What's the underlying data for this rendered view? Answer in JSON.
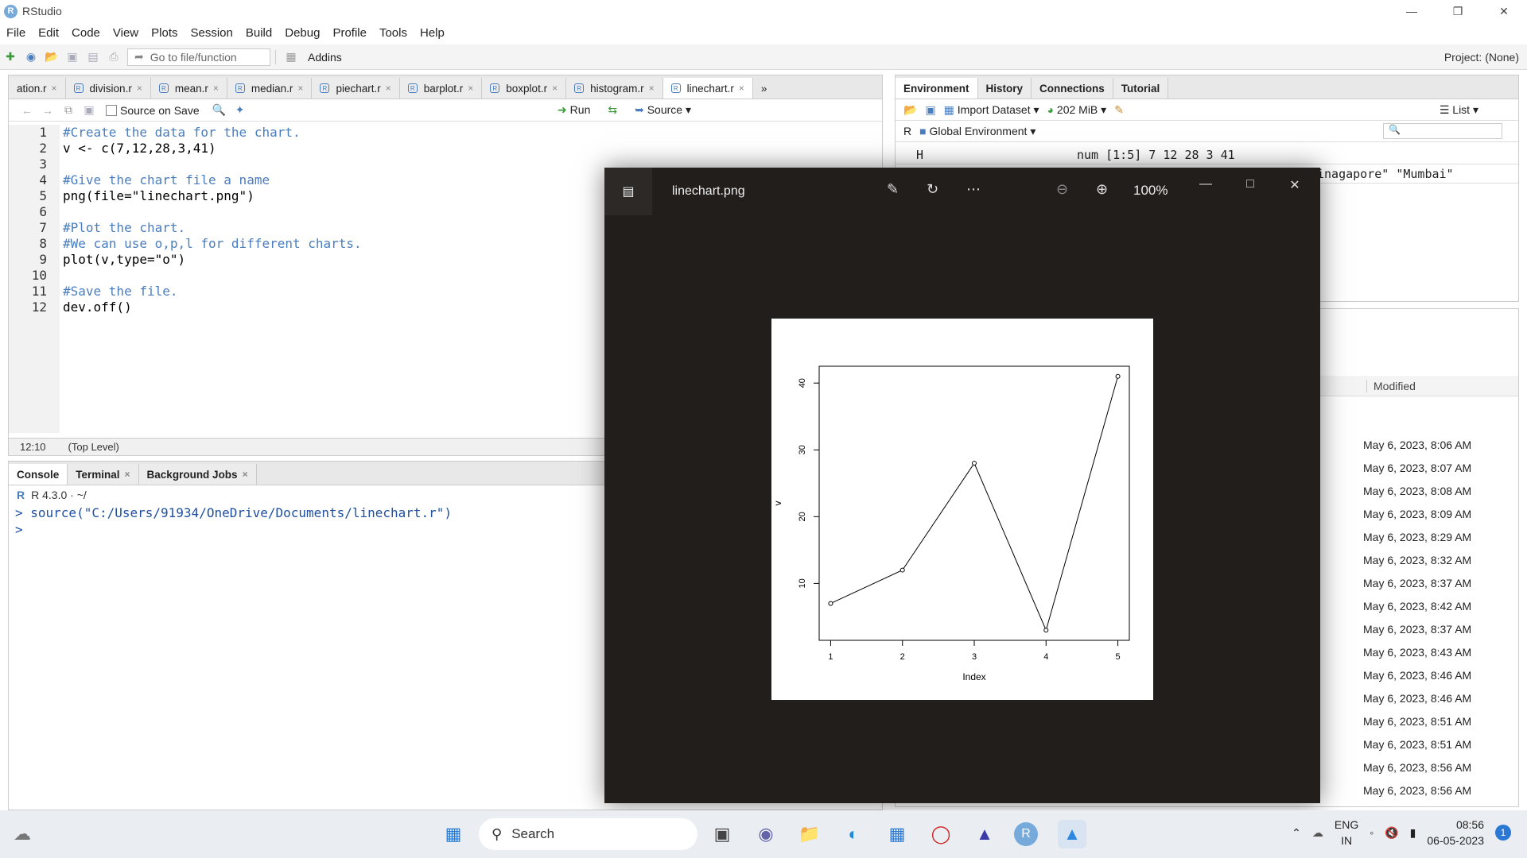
{
  "window": {
    "title": "RStudio"
  },
  "menu": [
    "File",
    "Edit",
    "Code",
    "View",
    "Plots",
    "Session",
    "Build",
    "Debug",
    "Profile",
    "Tools",
    "Help"
  ],
  "toolbar": {
    "goto_placeholder": "Go to file/function",
    "addins": "Addins",
    "project": "Project: (None)"
  },
  "editor": {
    "tabs": [
      "ation.r",
      "division.r",
      "mean.r",
      "median.r",
      "piechart.r",
      "barplot.r",
      "boxplot.r",
      "histogram.r",
      "linechart.r"
    ],
    "source_on_save": "Source on Save",
    "run": "Run",
    "source": "Source",
    "lines": [
      {
        "n": "1",
        "text": "#Create the data for the chart.",
        "comment": true
      },
      {
        "n": "2",
        "text": "v <- c(7,12,28,3,41)",
        "comment": false
      },
      {
        "n": "3",
        "text": "",
        "comment": false
      },
      {
        "n": "4",
        "text": "#Give the chart file a name",
        "comment": true
      },
      {
        "n": "5",
        "text": "png(file=\"linechart.png\")",
        "comment": false
      },
      {
        "n": "6",
        "text": "",
        "comment": false
      },
      {
        "n": "7",
        "text": "#Plot the chart.",
        "comment": true
      },
      {
        "n": "8",
        "text": "#We can use o,p,l for different charts.",
        "comment": true
      },
      {
        "n": "9",
        "text": "plot(v,type=\"o\")",
        "comment": false
      },
      {
        "n": "10",
        "text": "",
        "comment": false
      },
      {
        "n": "11",
        "text": "#Save the file.",
        "comment": true
      },
      {
        "n": "12",
        "text": "dev.off()",
        "comment": false
      }
    ],
    "cursor_pos": "12:10",
    "scope": "(Top Level)"
  },
  "console": {
    "tabs": [
      "Console",
      "Terminal",
      "Background Jobs"
    ],
    "version": "R 4.3.0 · ~/",
    "line1": "> source(\"C:/Users/91934/OneDrive/Documents/linechart.r\")",
    "line2": "> "
  },
  "environment": {
    "tabs": [
      "Environment",
      "History",
      "Connections",
      "Tutorial"
    ],
    "import": "Import Dataset",
    "memory": "202 MiB",
    "list": "List",
    "lang": "R",
    "scope": "Global Environment",
    "row_name": "H",
    "row_value": "num [1:5] 7 12 28 3 41",
    "row2_value": "inagapore\" \"Mumbai\""
  },
  "files": {
    "modified_header": "Modified",
    "modified": [
      "May 6, 2023, 8:06 AM",
      "May 6, 2023, 8:07 AM",
      "May 6, 2023, 8:08 AM",
      "May 6, 2023, 8:09 AM",
      "May 6, 2023, 8:29 AM",
      "May 6, 2023, 8:32 AM",
      "May 6, 2023, 8:37 AM",
      "May 6, 2023, 8:42 AM",
      "May 6, 2023, 8:37 AM",
      "May 6, 2023, 8:43 AM",
      "May 6, 2023, 8:46 AM",
      "May 6, 2023, 8:46 AM",
      "May 6, 2023, 8:51 AM",
      "May 6, 2023, 8:51 AM",
      "May 6, 2023, 8:56 AM",
      "May 6, 2023, 8:56 AM"
    ]
  },
  "viewer": {
    "filename": "linechart.png",
    "zoom": "100%"
  },
  "chart_data": {
    "type": "line",
    "x": [
      1,
      2,
      3,
      4,
      5
    ],
    "values": [
      7,
      12,
      28,
      3,
      41
    ],
    "xlabel": "Index",
    "ylabel": "v",
    "xticks": [
      "1",
      "2",
      "3",
      "4",
      "5"
    ],
    "yticks": [
      "10",
      "20",
      "30",
      "40"
    ],
    "xlim": [
      1,
      5
    ],
    "ylim": [
      3,
      41
    ]
  },
  "taskbar": {
    "search": "Search",
    "lang1": "ENG",
    "lang2": "IN",
    "time": "08:56",
    "date": "06-05-2023",
    "notif": "1"
  }
}
